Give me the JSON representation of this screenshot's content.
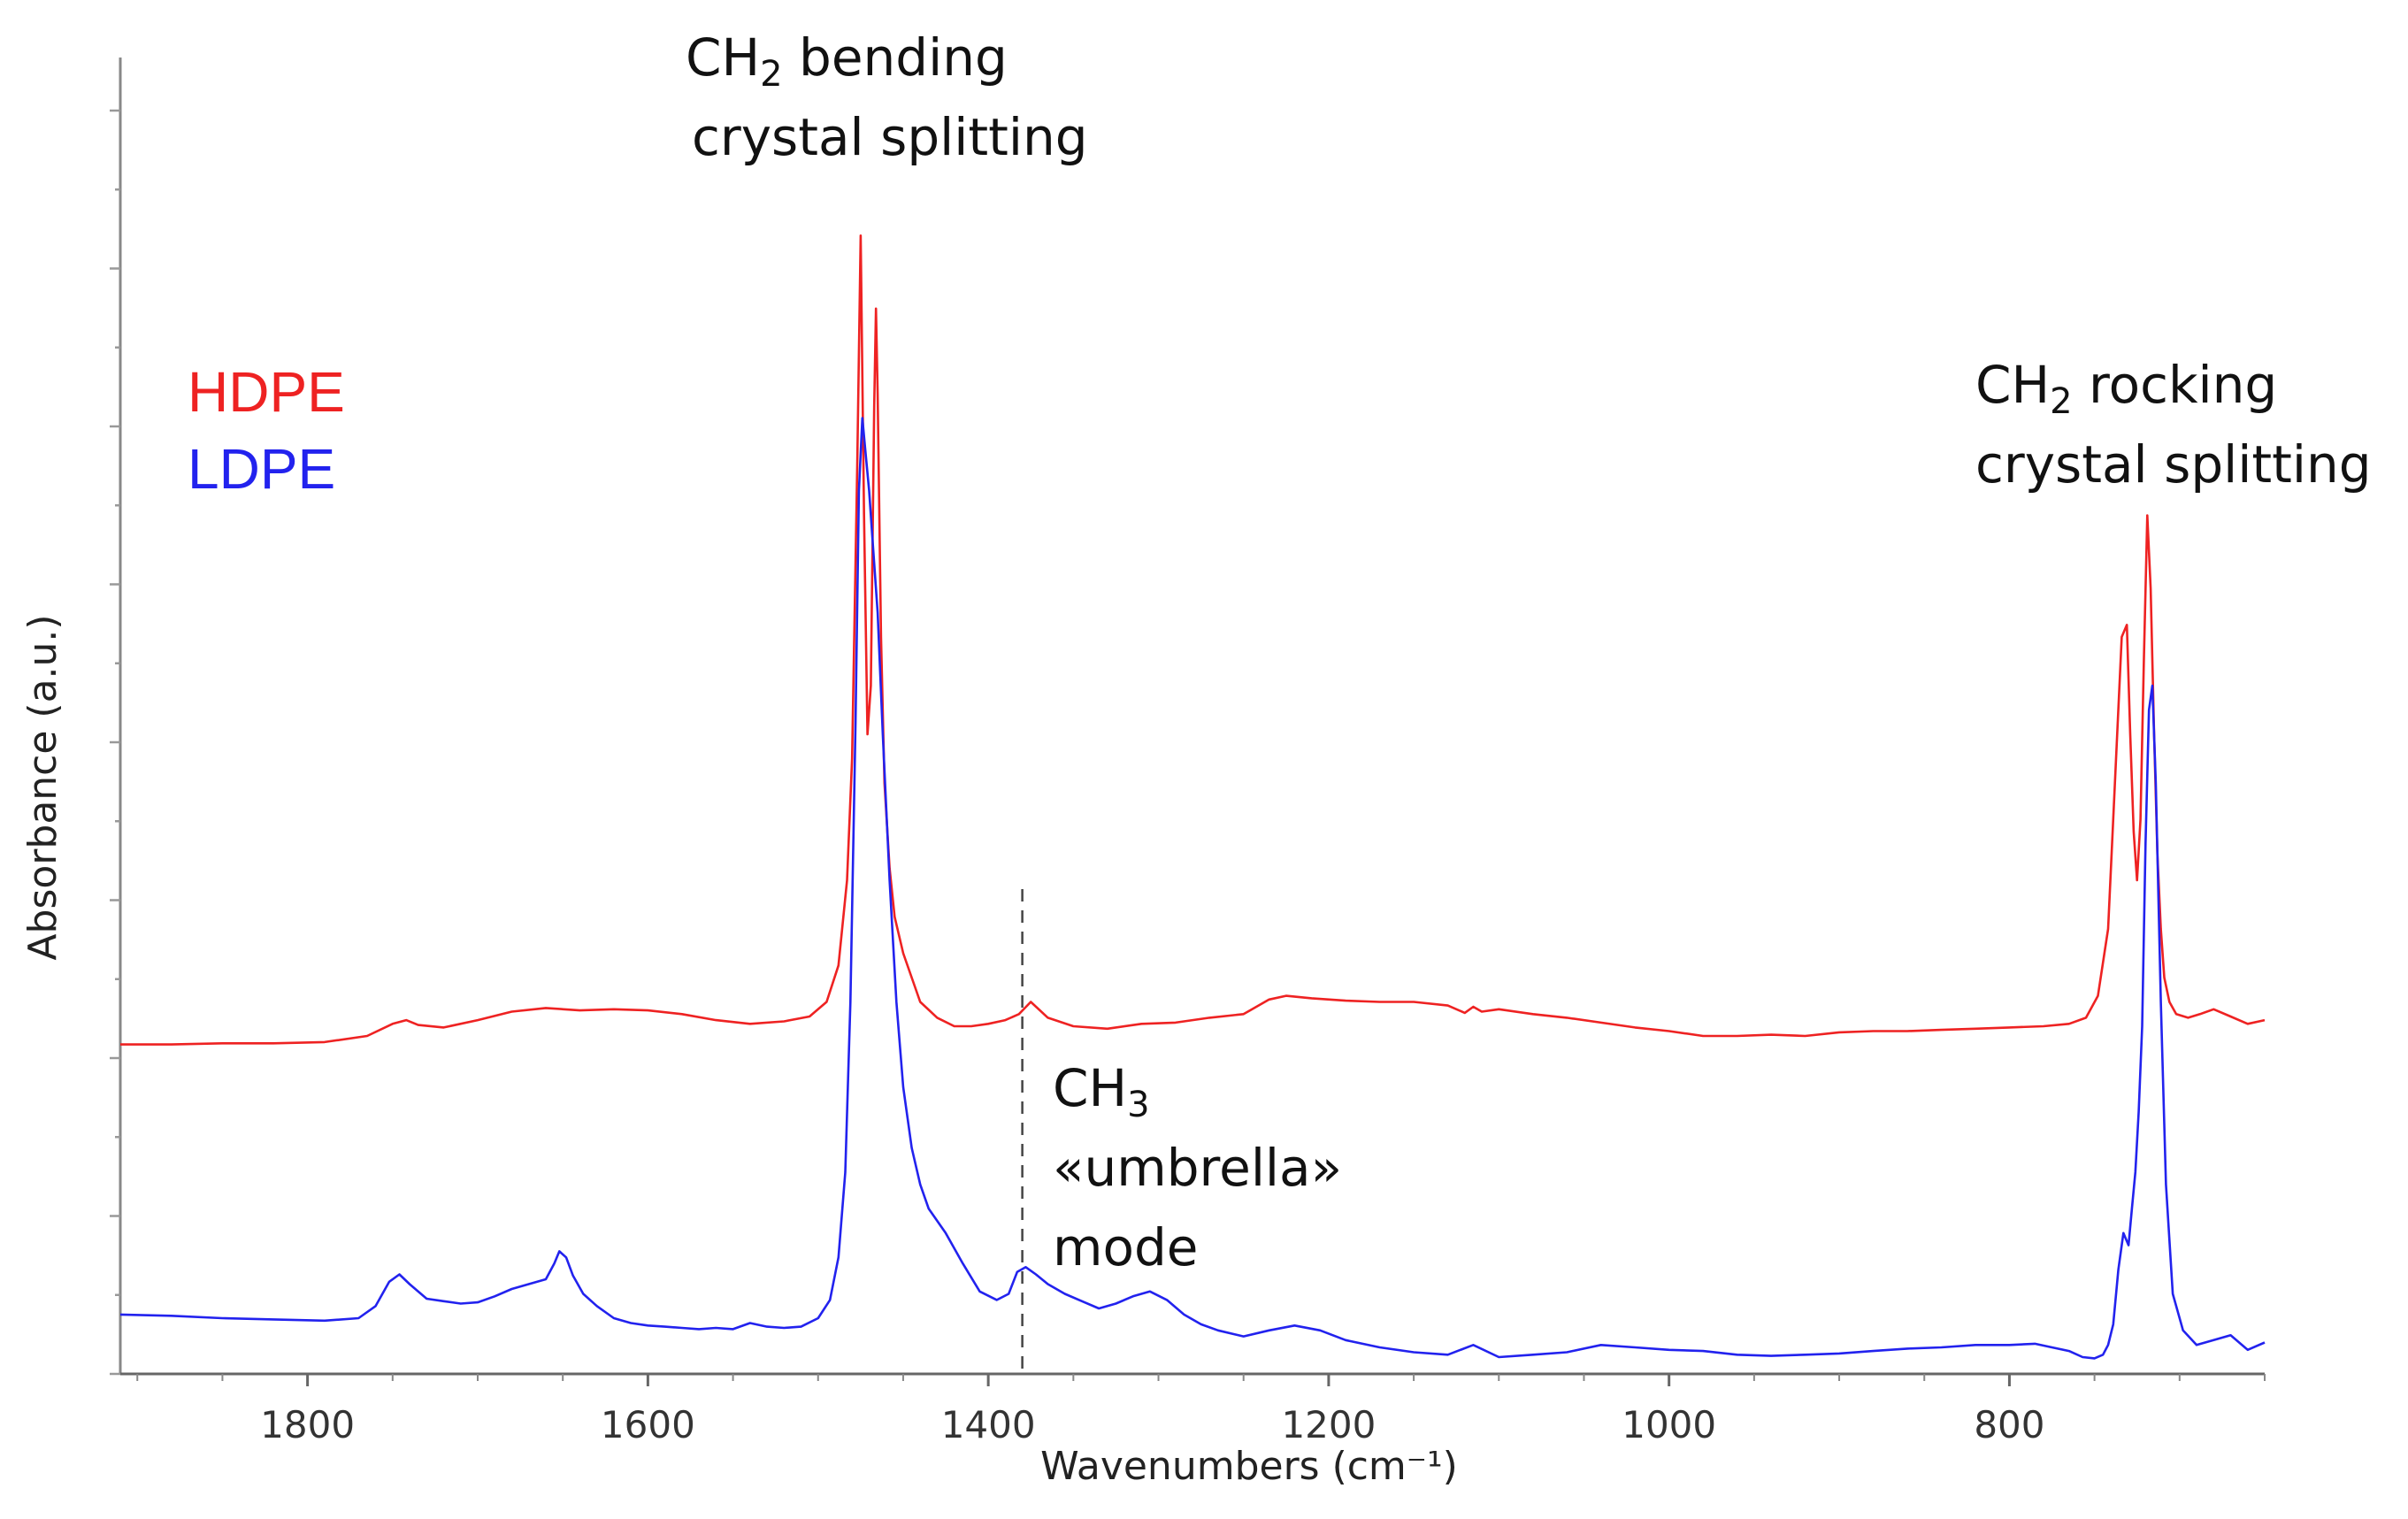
{
  "chart_data": {
    "type": "line",
    "title": "",
    "xlabel": "Wavenumbers (cm⁻¹)",
    "ylabel": "Absorbance  (a.u.)",
    "xlim": [
      1910,
      650
    ],
    "x_reversed": true,
    "ylim": [
      0,
      1
    ],
    "x_ticks": [
      1800,
      1600,
      1400,
      1200,
      1000,
      800
    ],
    "x_tick_labels": [
      "1800",
      "1600",
      "1400",
      "1200",
      "1000",
      "800"
    ],
    "y_tick_labels_shown": false,
    "grid": false,
    "legend": {
      "placement": "top-left",
      "entries": [
        "HDPE",
        "LDPE"
      ]
    },
    "series": [
      {
        "name": "HDPE",
        "color": "#ee2222",
        "x": [
          1910,
          1880,
          1850,
          1820,
          1790,
          1765,
          1750,
          1742,
          1735,
          1720,
          1700,
          1680,
          1660,
          1640,
          1620,
          1600,
          1580,
          1560,
          1540,
          1520,
          1505,
          1495,
          1488,
          1483,
          1480,
          1477,
          1475,
          1473,
          1471,
          1469,
          1467,
          1466,
          1465,
          1463,
          1461,
          1458,
          1455,
          1450,
          1445,
          1440,
          1430,
          1420,
          1410,
          1400,
          1390,
          1382,
          1375,
          1365,
          1350,
          1330,
          1310,
          1290,
          1270,
          1250,
          1235,
          1225,
          1210,
          1190,
          1170,
          1150,
          1130,
          1120,
          1115,
          1110,
          1100,
          1080,
          1060,
          1040,
          1020,
          1000,
          980,
          960,
          940,
          920,
          900,
          880,
          860,
          840,
          820,
          800,
          780,
          765,
          755,
          748,
          742,
          738,
          734,
          731,
          729,
          727,
          725,
          723,
          721,
          719,
          717,
          715,
          713,
          711,
          709,
          706,
          702,
          695,
          688,
          680,
          670,
          660,
          650
        ],
        "y": [
          0.265,
          0.265,
          0.266,
          0.266,
          0.267,
          0.272,
          0.282,
          0.285,
          0.281,
          0.279,
          0.285,
          0.292,
          0.295,
          0.293,
          0.294,
          0.293,
          0.29,
          0.285,
          0.282,
          0.284,
          0.288,
          0.3,
          0.33,
          0.4,
          0.5,
          0.74,
          0.93,
          0.7,
          0.52,
          0.56,
          0.79,
          0.87,
          0.8,
          0.6,
          0.48,
          0.41,
          0.37,
          0.34,
          0.32,
          0.3,
          0.287,
          0.28,
          0.28,
          0.282,
          0.285,
          0.29,
          0.3,
          0.287,
          0.28,
          0.278,
          0.282,
          0.283,
          0.287,
          0.29,
          0.302,
          0.305,
          0.303,
          0.301,
          0.3,
          0.3,
          0.297,
          0.291,
          0.296,
          0.292,
          0.294,
          0.29,
          0.287,
          0.283,
          0.279,
          0.276,
          0.272,
          0.272,
          0.273,
          0.272,
          0.275,
          0.276,
          0.276,
          0.277,
          0.278,
          0.279,
          0.28,
          0.282,
          0.287,
          0.305,
          0.36,
          0.48,
          0.6,
          0.61,
          0.52,
          0.44,
          0.4,
          0.45,
          0.58,
          0.7,
          0.64,
          0.52,
          0.42,
          0.36,
          0.32,
          0.3,
          0.29,
          0.287,
          0.29,
          0.294,
          0.288,
          0.282,
          0.285
        ]
      },
      {
        "name": "LDPE",
        "color": "#2222ee",
        "x": [
          1910,
          1880,
          1850,
          1820,
          1790,
          1770,
          1760,
          1752,
          1746,
          1740,
          1730,
          1720,
          1710,
          1700,
          1690,
          1680,
          1670,
          1660,
          1655,
          1652,
          1648,
          1644,
          1638,
          1630,
          1620,
          1610,
          1600,
          1590,
          1580,
          1570,
          1560,
          1550,
          1540,
          1530,
          1520,
          1510,
          1500,
          1493,
          1488,
          1484,
          1481,
          1478,
          1476,
          1474,
          1472,
          1470,
          1468,
          1465,
          1462,
          1458,
          1454,
          1450,
          1445,
          1440,
          1435,
          1425,
          1415,
          1405,
          1395,
          1388,
          1383,
          1378,
          1372,
          1365,
          1355,
          1345,
          1335,
          1325,
          1315,
          1305,
          1295,
          1285,
          1275,
          1265,
          1250,
          1235,
          1220,
          1205,
          1190,
          1170,
          1150,
          1130,
          1115,
          1100,
          1080,
          1060,
          1040,
          1020,
          1000,
          980,
          960,
          940,
          920,
          900,
          880,
          860,
          840,
          820,
          800,
          785,
          775,
          765,
          757,
          750,
          745,
          742,
          739,
          736,
          733,
          730,
          728,
          726,
          724,
          722,
          720,
          718,
          716,
          714,
          711,
          708,
          704,
          698,
          690,
          680,
          670,
          660,
          650
        ],
        "y": [
          0.043,
          0.042,
          0.04,
          0.039,
          0.038,
          0.04,
          0.05,
          0.07,
          0.076,
          0.068,
          0.056,
          0.054,
          0.052,
          0.053,
          0.058,
          0.064,
          0.068,
          0.072,
          0.085,
          0.095,
          0.09,
          0.075,
          0.06,
          0.05,
          0.04,
          0.036,
          0.034,
          0.033,
          0.032,
          0.031,
          0.032,
          0.031,
          0.036,
          0.033,
          0.032,
          0.033,
          0.04,
          0.055,
          0.09,
          0.16,
          0.3,
          0.53,
          0.72,
          0.78,
          0.75,
          0.72,
          0.68,
          0.62,
          0.52,
          0.4,
          0.3,
          0.23,
          0.18,
          0.15,
          0.13,
          0.11,
          0.085,
          0.062,
          0.055,
          0.06,
          0.078,
          0.082,
          0.076,
          0.068,
          0.06,
          0.054,
          0.048,
          0.052,
          0.058,
          0.062,
          0.055,
          0.043,
          0.035,
          0.03,
          0.025,
          0.03,
          0.034,
          0.03,
          0.022,
          0.016,
          0.012,
          0.01,
          0.018,
          0.008,
          0.01,
          0.012,
          0.018,
          0.016,
          0.014,
          0.013,
          0.01,
          0.009,
          0.01,
          0.011,
          0.013,
          0.015,
          0.016,
          0.018,
          0.018,
          0.019,
          0.016,
          0.013,
          0.008,
          0.007,
          0.01,
          0.018,
          0.035,
          0.08,
          0.11,
          0.1,
          0.13,
          0.16,
          0.21,
          0.28,
          0.43,
          0.54,
          0.56,
          0.48,
          0.3,
          0.15,
          0.06,
          0.03,
          0.018,
          0.022,
          0.026,
          0.014,
          0.02
        ]
      }
    ],
    "annotations": [
      {
        "text_main": "CH",
        "text_sub": "2",
        "text_rest": " bending",
        "line2": "crystal splitting",
        "anchor_x": 1555,
        "anchor_y": 1.02
      },
      {
        "text_main": "CH",
        "text_sub": "2",
        "text_rest": " rocking",
        "line2": "crystal splitting",
        "anchor_x": 760,
        "anchor_y": 0.72
      },
      {
        "text_main": "CH",
        "text_sub": "3",
        "text_rest": "",
        "line2": "«umbrella»",
        "line3": "mode",
        "anchor_x": 1355,
        "anchor_y": 0.215
      }
    ],
    "reference_line": {
      "x": 1380,
      "style": "dashed",
      "color": "#444444"
    }
  }
}
